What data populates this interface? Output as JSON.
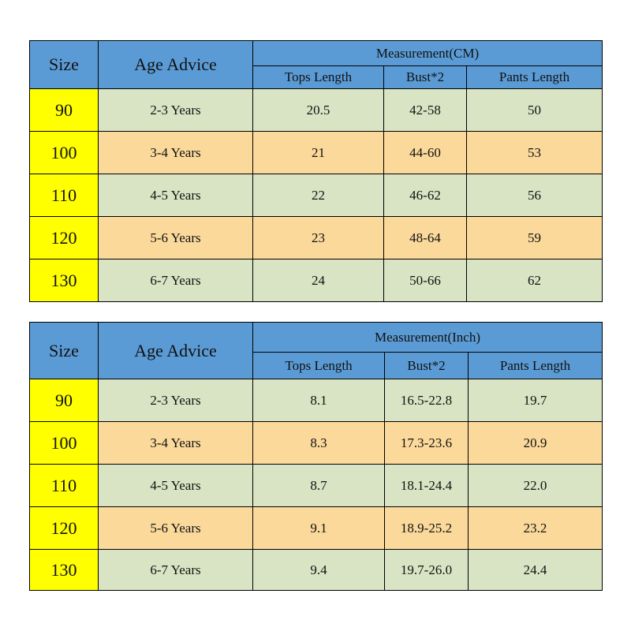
{
  "tables": [
    {
      "header": {
        "size": "Size",
        "age_advice": "Age Advice",
        "measurement": "Measurement(CM)",
        "columns": [
          "Tops Length",
          "Bust*2",
          "Pants Length"
        ]
      },
      "rows": [
        [
          "90",
          "2-3 Years",
          "20.5",
          "42-58",
          "50"
        ],
        [
          "100",
          "3-4 Years",
          "21",
          "44-60",
          "53"
        ],
        [
          "110",
          "4-5 Years",
          "22",
          "46-62",
          "56"
        ],
        [
          "120",
          "5-6 Years",
          "23",
          "48-64",
          "59"
        ],
        [
          "130",
          "6-7 Years",
          "24",
          "50-66",
          "62"
        ]
      ]
    },
    {
      "header": {
        "size": "Size",
        "age_advice": "Age Advice",
        "measurement": "Measurement(Inch)",
        "columns": [
          "Tops Length",
          "Bust*2",
          "Pants Length"
        ]
      },
      "rows": [
        [
          "90",
          "2-3 Years",
          "8.1",
          "16.5-22.8",
          "19.7"
        ],
        [
          "100",
          "3-4 Years",
          "8.3",
          "17.3-23.6",
          "20.9"
        ],
        [
          "110",
          "4-5 Years",
          "8.7",
          "18.1-24.4",
          "22.0"
        ],
        [
          "120",
          "5-6 Years",
          "9.1",
          "18.9-25.2",
          "23.2"
        ],
        [
          "130",
          "6-7 Years",
          "9.4",
          "19.7-26.0",
          "24.4"
        ]
      ]
    }
  ]
}
